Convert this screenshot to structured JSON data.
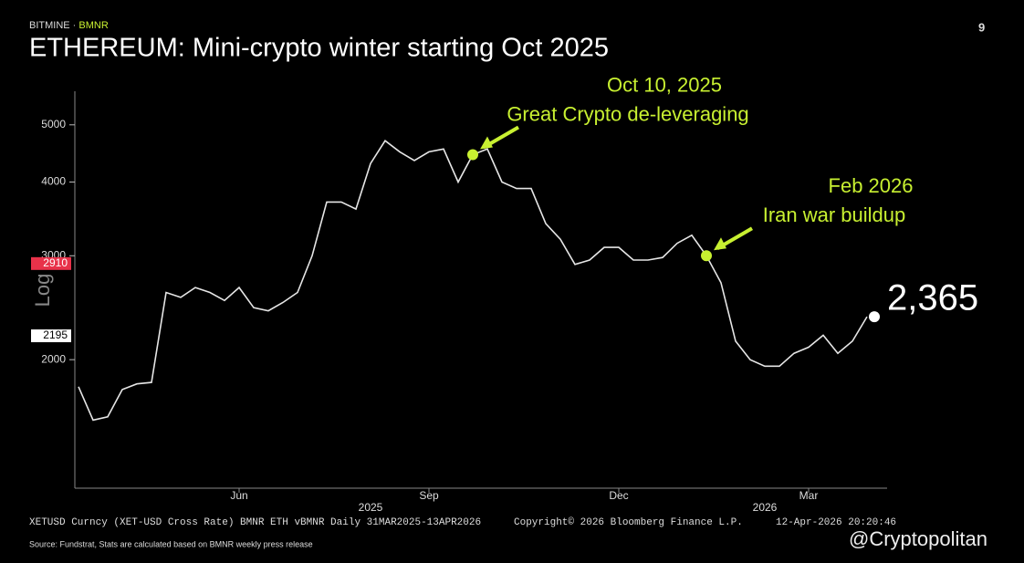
{
  "header": {
    "brand": "BITMINE",
    "ticker": "BMNR",
    "page_number": "9"
  },
  "chart_data": {
    "type": "line",
    "title": "ETHEREUM: Mini-crypto winter starting Oct 2025",
    "y_axis_label": "Log",
    "log_scale": true,
    "color": "#e6e6e6",
    "categories": [
      null,
      null,
      null,
      null,
      null,
      null,
      null,
      null,
      null,
      null,
      null,
      "Jun",
      null,
      null,
      null,
      null,
      null,
      null,
      null,
      null,
      null,
      null,
      null,
      null,
      "Sep",
      null,
      null,
      null,
      null,
      null,
      null,
      null,
      null,
      null,
      null,
      null,
      null,
      "Dec",
      null,
      null,
      null,
      null,
      null,
      null,
      null,
      null,
      null,
      null,
      null,
      null,
      "Mar",
      null,
      null,
      null,
      null
    ],
    "years": [
      null,
      null,
      null,
      null,
      null,
      null,
      null,
      null,
      null,
      null,
      null,
      null,
      null,
      null,
      null,
      null,
      null,
      null,
      null,
      null,
      "2025",
      null,
      null,
      null,
      null,
      null,
      null,
      null,
      null,
      null,
      null,
      null,
      null,
      null,
      null,
      null,
      null,
      null,
      null,
      null,
      null,
      null,
      null,
      null,
      null,
      null,
      null,
      "2026",
      null,
      null,
      null,
      null,
      null,
      null,
      null
    ],
    "series": [
      {
        "name": "XETUSD",
        "color": "#e6e6e6",
        "values": [
          1800,
          1580,
          1600,
          1780,
          1820,
          1830,
          2600,
          2550,
          2650,
          2600,
          2520,
          2650,
          2450,
          2420,
          2500,
          2600,
          3000,
          3700,
          3700,
          3600,
          4300,
          4700,
          4500,
          4350,
          4500,
          4550,
          4000,
          4450,
          4550,
          4000,
          3900,
          3900,
          3400,
          3200,
          2900,
          2950,
          3100,
          3100,
          2950,
          2950,
          2980,
          3150,
          3250,
          3000,
          2700,
          2150,
          2000,
          1950,
          1950,
          2050,
          2100,
          2200,
          2050,
          2150,
          2365
        ],
        "value_labels": [
          null,
          null,
          null,
          null,
          null,
          null,
          null,
          null,
          null,
          null,
          null,
          null,
          null,
          null,
          null,
          null,
          null,
          null,
          null,
          null,
          null,
          null,
          null,
          null,
          null,
          null,
          null,
          null,
          null,
          null,
          null,
          null,
          null,
          null,
          null,
          null,
          null,
          null,
          null,
          null,
          null,
          null,
          null,
          null,
          null,
          null,
          null,
          null,
          null,
          null,
          null,
          null,
          null,
          null,
          "2,365"
        ]
      }
    ],
    "ylim": [
      1220,
      5700
    ],
    "yticks": [
      2000,
      3000,
      4000,
      5000
    ],
    "price_tags": [
      {
        "value": 2910,
        "color": "#e8324a"
      },
      {
        "value": 2195,
        "color": "#ffffff"
      }
    ],
    "annotations": [
      {
        "index": 27,
        "lines": [
          "Oct 10, 2025",
          "Great Crypto de-leveraging"
        ],
        "color": "#c8f031"
      },
      {
        "index": 43,
        "lines": [
          "Feb 2026",
          "Iran war buildup"
        ],
        "color": "#c8f031"
      }
    ]
  },
  "footer": {
    "ticker_line": "XETUSD Curncy (XET-USD Cross Rate) BMNR ETH vBMNR Daily 31MAR2025-13APR2026",
    "copyright": "Copyright© 2026 Bloomberg Finance L.P.",
    "timestamp": "12-Apr-2026 20:20:46",
    "source": "Source: Fundstrat, Stats are calculated based on BMNR weekly press release",
    "watermark": "@Cryptopolitan"
  }
}
